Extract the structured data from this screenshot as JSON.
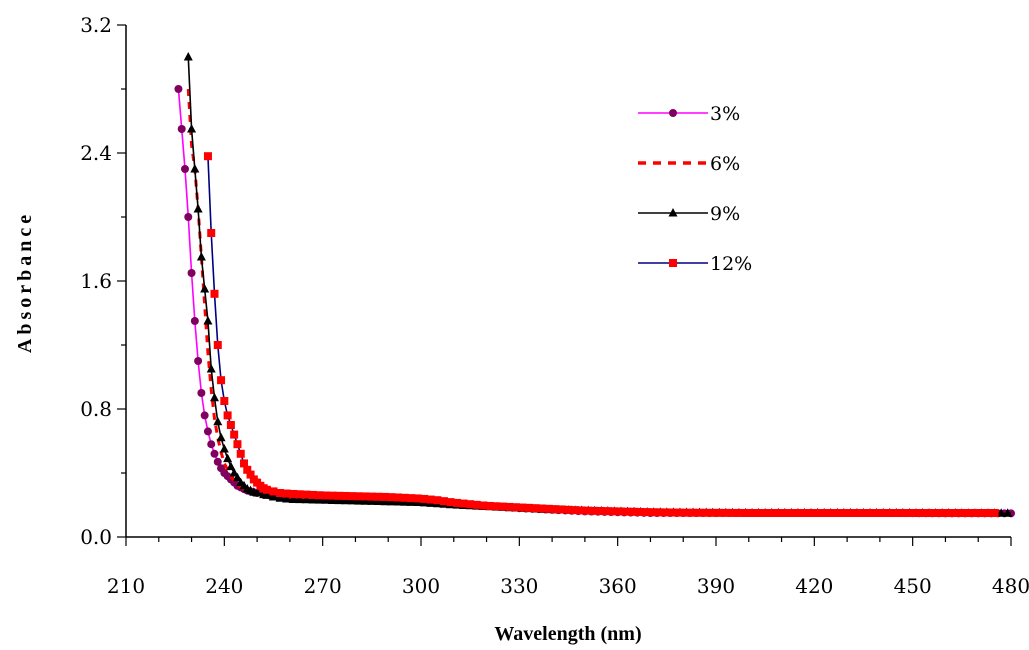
{
  "chart_data": {
    "type": "line",
    "title": "",
    "xlabel": "Wavelength (nm)",
    "ylabel": "Absorbance",
    "xlim": [
      210,
      480
    ],
    "ylim": [
      0,
      3.2
    ],
    "x_ticks": [
      "210",
      "240",
      "270",
      "300",
      "330",
      "360",
      "390",
      "420",
      "450",
      "480"
    ],
    "y_ticks": [
      "0.0",
      "0.8",
      "1.6",
      "2.4",
      "3.2"
    ],
    "grid": false,
    "legend_position": "top-right",
    "series": [
      {
        "name": "3%",
        "color": "#ff00ff",
        "marker_color": "#800060",
        "marker": "circle",
        "line_style": "solid",
        "points": [
          [
            226,
            2.8
          ],
          [
            227,
            2.55
          ],
          [
            228,
            2.3
          ],
          [
            229,
            2.0
          ],
          [
            230,
            1.65
          ],
          [
            231,
            1.35
          ],
          [
            232,
            1.1
          ],
          [
            233,
            0.9
          ],
          [
            234,
            0.76
          ],
          [
            235,
            0.66
          ],
          [
            236,
            0.58
          ],
          [
            237,
            0.52
          ],
          [
            238,
            0.47
          ],
          [
            239,
            0.43
          ],
          [
            240,
            0.4
          ],
          [
            241,
            0.38
          ],
          [
            242,
            0.36
          ],
          [
            243,
            0.34
          ],
          [
            244,
            0.32
          ],
          [
            245,
            0.31
          ],
          [
            246,
            0.3
          ],
          [
            247,
            0.29
          ],
          [
            248,
            0.285
          ],
          [
            249,
            0.28
          ],
          [
            250,
            0.275
          ],
          [
            252,
            0.265
          ],
          [
            255,
            0.255
          ],
          [
            260,
            0.245
          ],
          [
            270,
            0.235
          ],
          [
            280,
            0.23
          ],
          [
            290,
            0.225
          ],
          [
            300,
            0.22
          ],
          [
            310,
            0.205
          ],
          [
            320,
            0.195
          ],
          [
            330,
            0.18
          ],
          [
            340,
            0.17
          ],
          [
            350,
            0.16
          ],
          [
            360,
            0.155
          ],
          [
            370,
            0.15
          ],
          [
            380,
            0.15
          ],
          [
            400,
            0.15
          ],
          [
            420,
            0.15
          ],
          [
            440,
            0.15
          ],
          [
            460,
            0.148
          ],
          [
            480,
            0.148
          ]
        ]
      },
      {
        "name": "6%",
        "color": "#ff0000",
        "marker": "none",
        "line_style": "dashed",
        "points": [
          [
            229,
            2.8
          ],
          [
            230,
            2.45
          ],
          [
            231,
            2.3
          ],
          [
            232,
            2.05
          ],
          [
            233,
            1.75
          ],
          [
            234,
            1.45
          ],
          [
            235,
            1.15
          ],
          [
            236,
            0.92
          ],
          [
            237,
            0.74
          ],
          [
            238,
            0.62
          ],
          [
            239,
            0.53
          ],
          [
            240,
            0.46
          ],
          [
            241,
            0.42
          ],
          [
            242,
            0.38
          ],
          [
            243,
            0.35
          ],
          [
            244,
            0.33
          ],
          [
            245,
            0.31
          ],
          [
            246,
            0.3
          ],
          [
            248,
            0.28
          ],
          [
            250,
            0.265
          ],
          [
            255,
            0.245
          ],
          [
            260,
            0.235
          ],
          [
            270,
            0.23
          ],
          [
            280,
            0.225
          ],
          [
            290,
            0.22
          ],
          [
            300,
            0.215
          ],
          [
            310,
            0.2
          ],
          [
            320,
            0.19
          ],
          [
            330,
            0.18
          ],
          [
            340,
            0.165
          ],
          [
            350,
            0.155
          ],
          [
            360,
            0.15
          ],
          [
            370,
            0.148
          ],
          [
            400,
            0.145
          ],
          [
            440,
            0.145
          ],
          [
            480,
            0.145
          ]
        ]
      },
      {
        "name": "9%",
        "color": "#000000",
        "marker": "triangle",
        "line_style": "solid",
        "points": [
          [
            229,
            3.0
          ],
          [
            230,
            2.55
          ],
          [
            231,
            2.3
          ],
          [
            232,
            2.05
          ],
          [
            233,
            1.75
          ],
          [
            234,
            1.55
          ],
          [
            235,
            1.35
          ],
          [
            236,
            1.05
          ],
          [
            237,
            0.87
          ],
          [
            238,
            0.72
          ],
          [
            239,
            0.62
          ],
          [
            240,
            0.55
          ],
          [
            241,
            0.49
          ],
          [
            242,
            0.44
          ],
          [
            243,
            0.4
          ],
          [
            244,
            0.37
          ],
          [
            245,
            0.34
          ],
          [
            246,
            0.32
          ],
          [
            247,
            0.3
          ],
          [
            248,
            0.29
          ],
          [
            249,
            0.28
          ],
          [
            250,
            0.275
          ],
          [
            252,
            0.265
          ],
          [
            254,
            0.255
          ],
          [
            256,
            0.245
          ],
          [
            260,
            0.235
          ],
          [
            270,
            0.23
          ],
          [
            280,
            0.225
          ],
          [
            290,
            0.22
          ],
          [
            300,
            0.215
          ],
          [
            310,
            0.2
          ],
          [
            320,
            0.19
          ],
          [
            330,
            0.18
          ],
          [
            340,
            0.17
          ],
          [
            350,
            0.165
          ],
          [
            360,
            0.16
          ],
          [
            370,
            0.155
          ],
          [
            400,
            0.15
          ],
          [
            440,
            0.15
          ],
          [
            480,
            0.148
          ]
        ]
      },
      {
        "name": "12%",
        "color": "#000080",
        "marker_color": "#ff0000",
        "marker": "square",
        "line_style": "solid",
        "points": [
          [
            235,
            2.38
          ],
          [
            236,
            1.9
          ],
          [
            237,
            1.52
          ],
          [
            238,
            1.2
          ],
          [
            239,
            0.98
          ],
          [
            240,
            0.85
          ],
          [
            241,
            0.76
          ],
          [
            242,
            0.7
          ],
          [
            243,
            0.64
          ],
          [
            244,
            0.58
          ],
          [
            245,
            0.52
          ],
          [
            246,
            0.46
          ],
          [
            247,
            0.42
          ],
          [
            248,
            0.39
          ],
          [
            249,
            0.36
          ],
          [
            250,
            0.34
          ],
          [
            251,
            0.32
          ],
          [
            252,
            0.305
          ],
          [
            253,
            0.295
          ],
          [
            255,
            0.285
          ],
          [
            257,
            0.275
          ],
          [
            260,
            0.27
          ],
          [
            265,
            0.265
          ],
          [
            270,
            0.26
          ],
          [
            280,
            0.255
          ],
          [
            290,
            0.25
          ],
          [
            295,
            0.245
          ],
          [
            300,
            0.24
          ],
          [
            305,
            0.23
          ],
          [
            310,
            0.215
          ],
          [
            315,
            0.205
          ],
          [
            320,
            0.195
          ],
          [
            330,
            0.185
          ],
          [
            340,
            0.175
          ],
          [
            350,
            0.165
          ],
          [
            360,
            0.16
          ],
          [
            370,
            0.155
          ],
          [
            380,
            0.152
          ],
          [
            400,
            0.15
          ],
          [
            420,
            0.15
          ],
          [
            440,
            0.15
          ],
          [
            460,
            0.15
          ],
          [
            475,
            0.15
          ]
        ]
      }
    ]
  }
}
